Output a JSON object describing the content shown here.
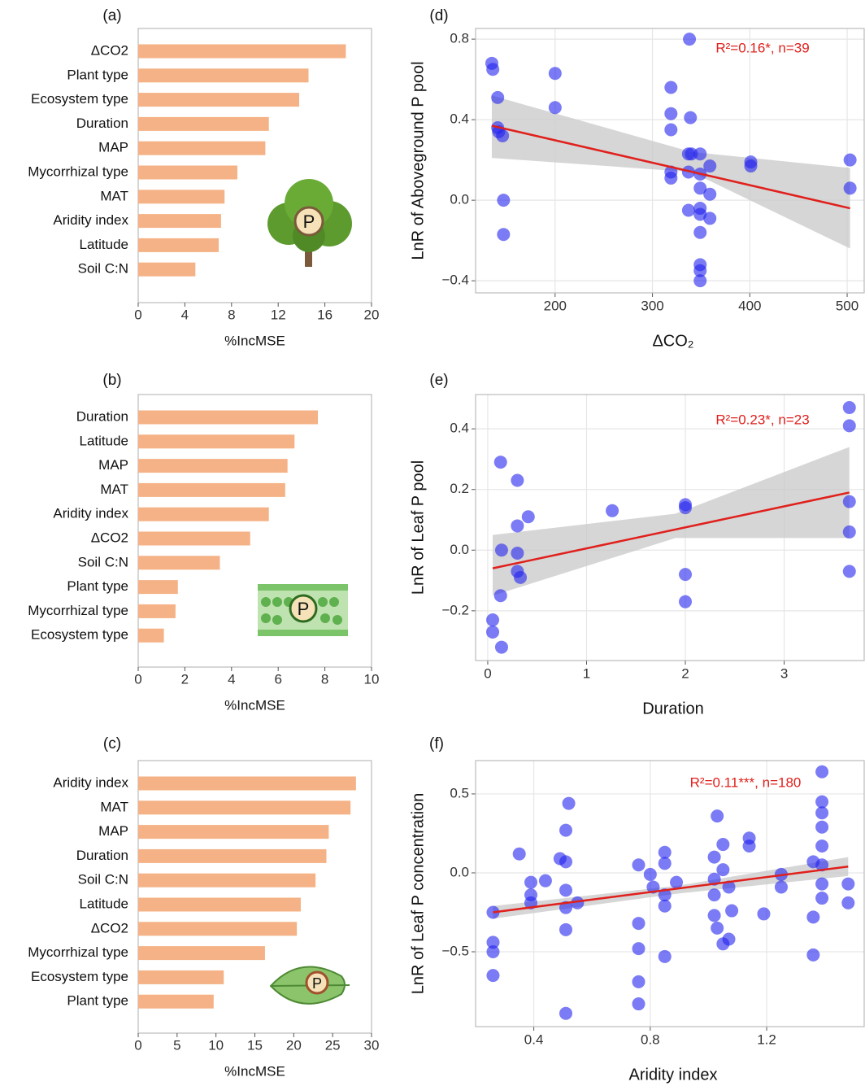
{
  "chart_data": [
    {
      "type": "hbar",
      "panel": "(a)",
      "categories": [
        "ΔCO2",
        "Plant type",
        "Ecosystem type",
        "Duration",
        "MAP",
        "Mycorrhizal type",
        "MAT",
        "Aridity index",
        "Latitude",
        "Soil C:N"
      ],
      "values": [
        17.8,
        14.6,
        13.8,
        11.2,
        10.9,
        8.5,
        7.4,
        7.1,
        6.9,
        4.9
      ],
      "color": "#f5b286",
      "xlabel": "%IncMSE",
      "xlim": [
        0,
        20
      ],
      "xticks": [
        0,
        4,
        8,
        12,
        16,
        20
      ],
      "icon_text": "P"
    },
    {
      "type": "hbar",
      "panel": "(b)",
      "categories": [
        "Duration",
        "Latitude",
        "MAP",
        "MAT",
        "Aridity index",
        "ΔCO2",
        "Soil C:N",
        "Plant type",
        "Mycorrhizal type",
        "Ecosystem type"
      ],
      "values": [
        7.7,
        6.7,
        6.4,
        6.3,
        5.6,
        4.8,
        3.5,
        1.7,
        1.6,
        1.1
      ],
      "color": "#f5b286",
      "xlabel": "%IncMSE",
      "xlim": [
        0,
        10
      ],
      "xticks": [
        0,
        2,
        4,
        6,
        8,
        10
      ],
      "icon_text": "P"
    },
    {
      "type": "hbar",
      "panel": "(c)",
      "categories": [
        "Aridity index",
        "MAT",
        "MAP",
        "Duration",
        "Soil C:N",
        "Latitude",
        "ΔCO2",
        "Mycorrhizal type",
        "Ecosystem type",
        "Plant type"
      ],
      "values": [
        28.0,
        27.3,
        24.5,
        24.2,
        22.8,
        20.9,
        20.4,
        16.3,
        11.0,
        9.7
      ],
      "color": "#f5b286",
      "xlabel": "%IncMSE",
      "xlim": [
        0,
        30
      ],
      "xticks": [
        0,
        5,
        10,
        15,
        20,
        25,
        30
      ],
      "icon_text": "P"
    },
    {
      "type": "scatter",
      "panel": "(d)",
      "xlabel": "ΔCO₂",
      "ylabel": "LnR of Aboveground P pool",
      "annotation": "R²=0.16*, n=39",
      "color": "#2323ee",
      "x": [
        135,
        136,
        141,
        141,
        142,
        146,
        147,
        147,
        200,
        200,
        319,
        319,
        319,
        319,
        319,
        338,
        339,
        337,
        340,
        337,
        349,
        349,
        349,
        359,
        359,
        337,
        349,
        349,
        359,
        349,
        349,
        349,
        349,
        401,
        401,
        503,
        503
      ],
      "y": [
        0.68,
        0.65,
        0.51,
        0.36,
        0.34,
        0.32,
        0.0,
        -0.17,
        0.63,
        0.46,
        0.56,
        0.43,
        0.35,
        0.14,
        0.11,
        0.8,
        0.41,
        0.23,
        0.23,
        0.14,
        0.23,
        0.13,
        0.06,
        0.17,
        0.03,
        -0.05,
        -0.04,
        -0.07,
        -0.09,
        -0.16,
        -0.32,
        -0.35,
        -0.4,
        0.19,
        0.17,
        0.2,
        0.06
      ],
      "fit": {
        "x": [
          135,
          503
        ],
        "y": [
          0.37,
          -0.04
        ],
        "color": "#e0201c"
      },
      "ci": {
        "x": [
          135,
          340,
          503
        ],
        "upper": [
          0.52,
          0.24,
          0.16
        ],
        "lower": [
          0.21,
          0.14,
          -0.24
        ],
        "color": "#c8c8c8"
      },
      "xlim": [
        118.3,
        517.5
      ],
      "ylim": [
        -0.46,
        0.853
      ],
      "xticks": [
        200,
        300,
        400,
        500
      ],
      "yticks": [
        {
          "value": -0.4,
          "label": "−0.4"
        },
        {
          "value": 0,
          "label": "0.0"
        },
        0.4,
        0.8
      ],
      "grid": true
    },
    {
      "type": "scatter",
      "panel": "(e)",
      "xlabel": "Duration",
      "ylabel": "LnR of Leaf P pool",
      "annotation": "R²=0.23*, n=23",
      "color": "#2323ee",
      "x": [
        0.13,
        0.3,
        0.41,
        0.3,
        0.14,
        0.3,
        0.3,
        0.33,
        0.13,
        0.05,
        0.05,
        0.14,
        1.26,
        2.0,
        2.0,
        2.0,
        2.0,
        3.66,
        3.66,
        3.66,
        3.66,
        3.66
      ],
      "y": [
        0.29,
        0.23,
        0.11,
        0.08,
        0.0,
        -0.01,
        -0.07,
        -0.09,
        -0.15,
        -0.23,
        -0.27,
        -0.32,
        0.13,
        0.15,
        0.14,
        -0.08,
        -0.17,
        0.47,
        0.41,
        0.16,
        0.06,
        -0.07
      ],
      "fit": {
        "x": [
          0.05,
          3.66
        ],
        "y": [
          -0.06,
          0.19
        ],
        "color": "#e0201c"
      },
      "ci": {
        "x": [
          0.05,
          1.9,
          3.66
        ],
        "upper": [
          0.05,
          0.12,
          0.34
        ],
        "lower": [
          -0.15,
          0.04,
          0.04
        ],
        "color": "#c8c8c8"
      },
      "xlim": [
        -0.123,
        3.81
      ],
      "ylim": [
        -0.364,
        0.513
      ],
      "xticks": [
        0,
        1,
        2,
        3
      ],
      "yticks": [
        {
          "value": -0.2,
          "label": "−0.2"
        },
        {
          "value": 0,
          "label": "0.0"
        },
        0.2,
        0.4
      ],
      "grid": true
    },
    {
      "type": "scatter",
      "panel": "(f)",
      "xlabel": "Aridity index",
      "ylabel": "LnR of Leaf P concentration",
      "annotation": "R²=0.11***, n=180",
      "color": "#2323ee",
      "x": [
        0.26,
        0.26,
        0.26,
        0.26,
        0.35,
        0.39,
        0.39,
        0.39,
        0.44,
        0.49,
        0.52,
        0.51,
        0.51,
        0.51,
        0.51,
        0.51,
        0.51,
        0.55,
        0.76,
        0.76,
        0.76,
        0.76,
        0.76,
        0.8,
        0.81,
        0.85,
        0.85,
        0.85,
        0.85,
        0.85,
        0.89,
        1.02,
        1.02,
        1.02,
        1.02,
        1.03,
        1.03,
        1.05,
        1.05,
        1.05,
        1.07,
        1.07,
        1.08,
        1.14,
        1.14,
        1.19,
        1.25,
        1.25,
        1.36,
        1.36,
        1.36,
        1.39,
        1.39,
        1.39,
        1.39,
        1.39,
        1.39,
        1.39,
        1.39,
        1.48,
        1.48
      ],
      "y": [
        -0.25,
        -0.44,
        -0.5,
        -0.65,
        0.12,
        -0.06,
        -0.14,
        -0.19,
        -0.05,
        0.09,
        0.44,
        0.27,
        0.07,
        -0.11,
        -0.22,
        -0.36,
        -0.89,
        -0.19,
        0.05,
        -0.32,
        -0.48,
        -0.69,
        -0.83,
        -0.01,
        -0.09,
        0.13,
        0.06,
        -0.14,
        -0.21,
        -0.53,
        -0.06,
        0.1,
        -0.04,
        -0.14,
        -0.27,
        0.36,
        -0.35,
        -0.45,
        0.18,
        0.02,
        -0.09,
        -0.42,
        -0.24,
        0.22,
        0.17,
        -0.26,
        -0.01,
        -0.09,
        -0.28,
        -0.52,
        0.07,
        0.64,
        0.45,
        0.38,
        0.29,
        0.17,
        0.05,
        -0.07,
        -0.16,
        -0.07,
        -0.19
      ],
      "fit": {
        "x": [
          0.26,
          1.48
        ],
        "y": [
          -0.25,
          0.04
        ],
        "color": "#e0201c"
      },
      "ci": {
        "x": [
          0.26,
          0.9,
          1.48
        ],
        "upper": [
          -0.21,
          -0.08,
          0.1
        ],
        "lower": [
          -0.29,
          -0.13,
          -0.02
        ],
        "color": "#c8c8c8"
      },
      "xlim": [
        0.2,
        1.535
      ],
      "ylim": [
        -0.974,
        0.711
      ],
      "xticks": [
        0.4,
        0.8,
        1.2
      ],
      "yticks": [
        {
          "value": -0.5,
          "label": "−0.5"
        },
        {
          "value": 0,
          "label": "0.0"
        },
        0.5
      ],
      "grid": true
    }
  ]
}
